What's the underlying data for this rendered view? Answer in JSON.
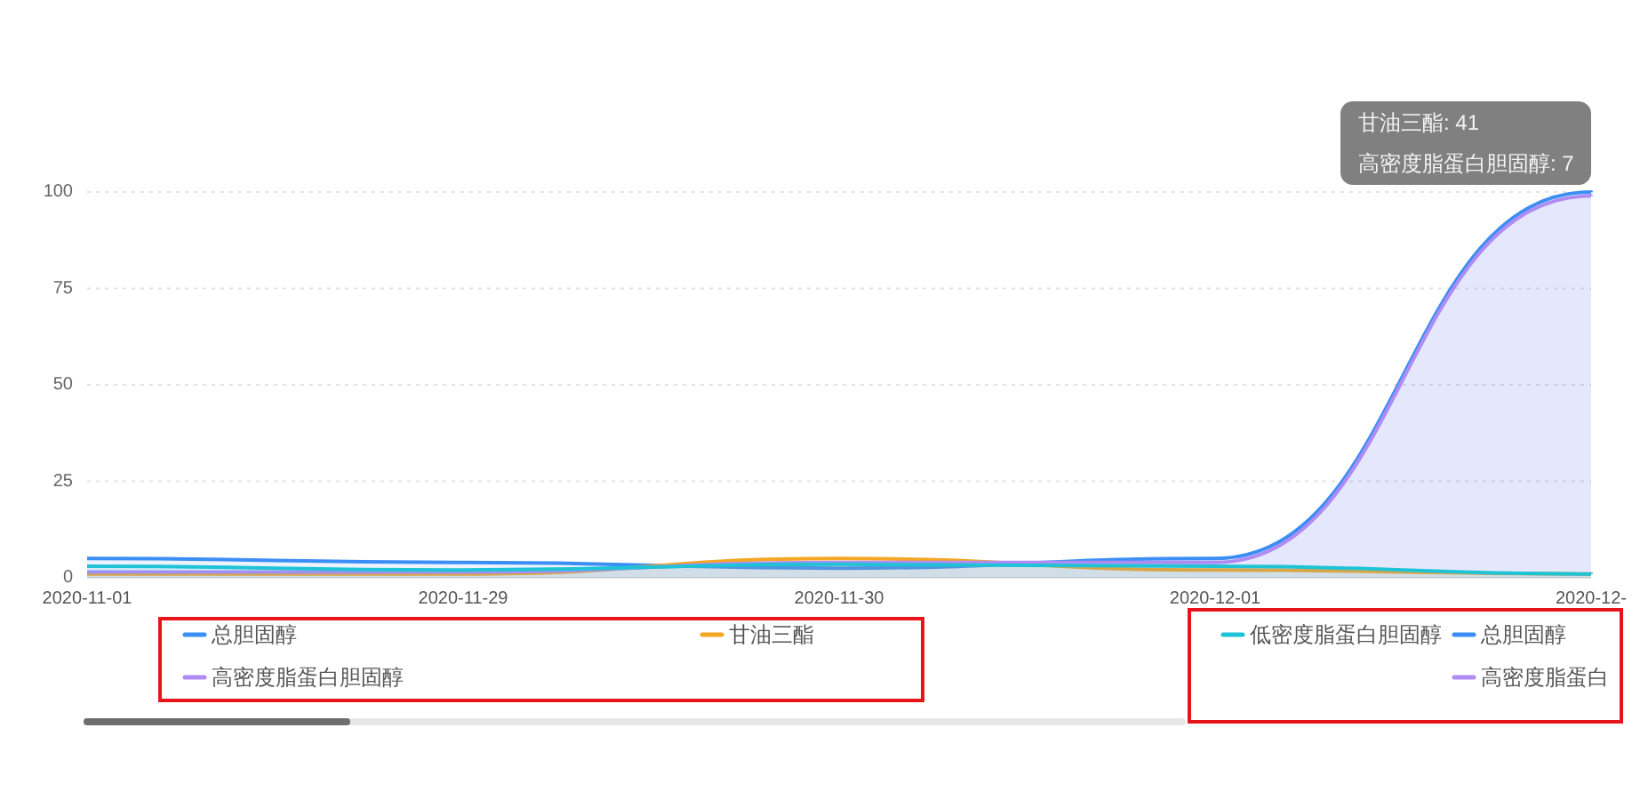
{
  "chart_data": {
    "type": "area",
    "categories": [
      "2020-11-01",
      "2020-11-29",
      "2020-11-30",
      "2020-12-01",
      "2020-12-"
    ],
    "series": [
      {
        "name": "总胆固醇",
        "color": "#3a8ef6",
        "values": [
          5,
          4,
          2.5,
          5,
          100
        ]
      },
      {
        "name": "甘油三酯",
        "color": "#f5a623",
        "values": [
          1,
          1,
          5,
          2,
          1
        ]
      },
      {
        "name": "高密度脂蛋白胆固醇",
        "color": "#ae8cf4",
        "values": [
          1.5,
          1.5,
          4,
          4,
          99
        ]
      },
      {
        "name": "低密度脂蛋白胆固醇",
        "color": "#1fc3d6",
        "values": [
          3,
          2,
          3.5,
          3,
          1
        ]
      }
    ],
    "ylim": [
      0,
      100
    ],
    "yticks": [
      0,
      25,
      50,
      75,
      100
    ],
    "grid": "y",
    "legend": "bottom",
    "annotations": [
      "甘油三酯: 41",
      "高密度脂蛋白胆固醇: 7",
      "总胆固醇",
      "高密度脂蛋白"
    ]
  }
}
